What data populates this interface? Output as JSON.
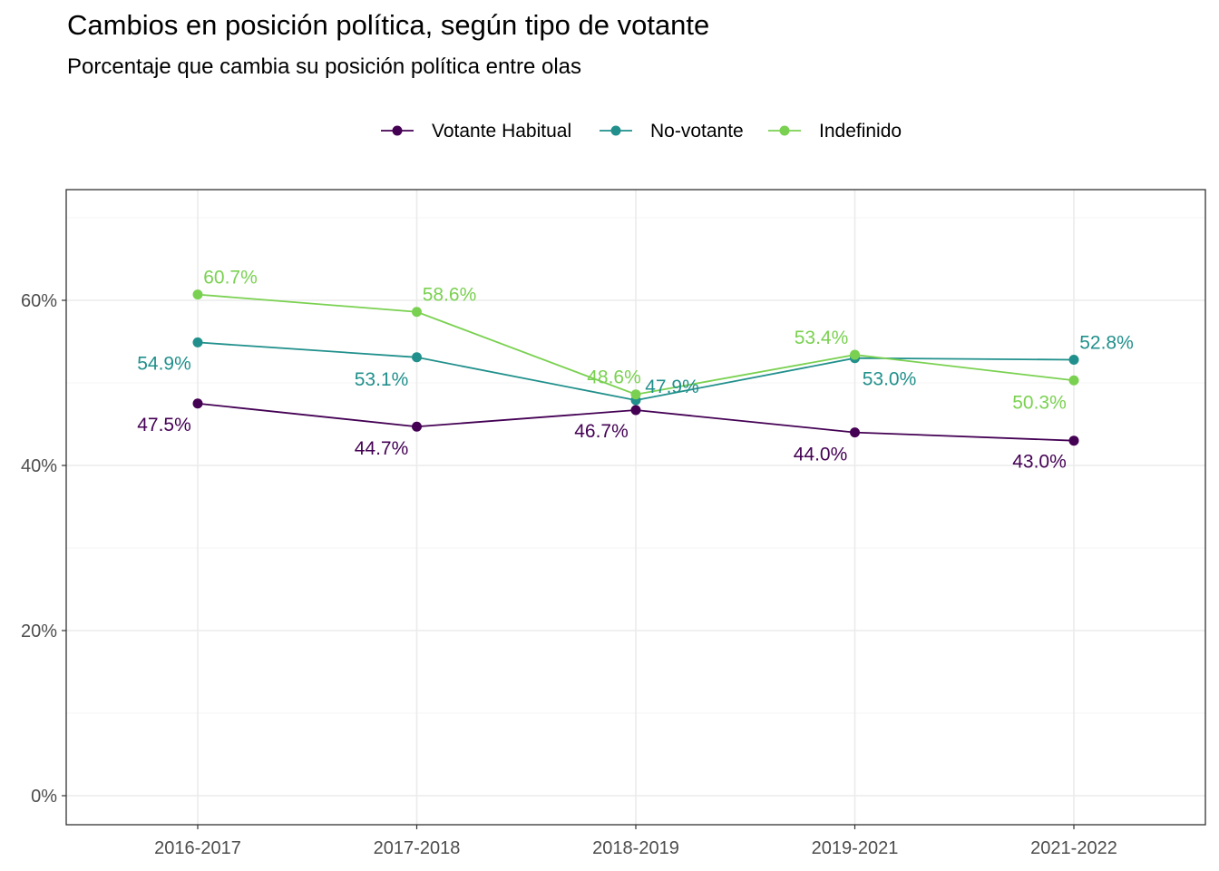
{
  "title": "Cambios en posición política, según tipo de votante",
  "subtitle": "Porcentaje que cambia su posición política entre olas",
  "chart_data": {
    "type": "line",
    "title": "Cambios en posición política, según tipo de votante",
    "subtitle": "Porcentaje que cambia su posición política entre olas",
    "xlabel": "",
    "ylabel": "",
    "categories": [
      "2016-2017",
      "2017-2018",
      "2018-2019",
      "2019-2021",
      "2021-2022"
    ],
    "ylim": [
      0,
      70
    ],
    "yticks": [
      0,
      20,
      40,
      60
    ],
    "ytick_labels": [
      "0%",
      "20%",
      "40%",
      "60%"
    ],
    "grid": true,
    "legend_position": "top",
    "series": [
      {
        "name": "Votante Habitual",
        "color": "#440154",
        "values": [
          47.5,
          44.7,
          46.7,
          44.0,
          43.0
        ],
        "labels": [
          "47.5%",
          "44.7%",
          "46.7%",
          "44.0%",
          "43.0%"
        ]
      },
      {
        "name": "No-votante",
        "color": "#21908C",
        "values": [
          54.9,
          53.1,
          47.9,
          53.0,
          52.8
        ],
        "labels": [
          "54.9%",
          "53.1%",
          "47.9%",
          "53.0%",
          "52.8%"
        ]
      },
      {
        "name": "Indefinido",
        "color": "#7AD151",
        "values": [
          60.7,
          58.6,
          48.6,
          53.4,
          50.3
        ],
        "labels": [
          "60.7%",
          "58.6%",
          "48.6%",
          "53.4%",
          "50.3%"
        ]
      }
    ]
  }
}
